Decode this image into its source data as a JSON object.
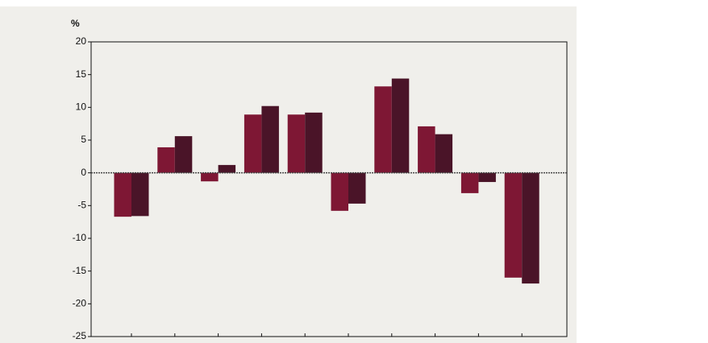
{
  "chart_data": {
    "type": "bar",
    "y_label": "%",
    "categories": [
      null,
      null,
      null,
      null,
      null,
      null,
      null,
      null,
      null,
      null
    ],
    "series": [
      {
        "color": "#7e1734",
        "values": [
          -6.7,
          3.9,
          -1.3,
          8.9,
          8.9,
          -5.8,
          13.2,
          7.1,
          -3.1,
          -16.0
        ]
      },
      {
        "color": "#4a1428",
        "values": [
          -6.6,
          5.6,
          1.2,
          10.2,
          9.2,
          -4.7,
          14.4,
          5.9,
          -1.4,
          -16.9
        ]
      }
    ],
    "ylim": [
      -25,
      20
    ],
    "yticks": [
      20,
      15,
      10,
      5,
      0,
      -5,
      -10,
      -15,
      -20,
      -25
    ],
    "grid": false
  }
}
